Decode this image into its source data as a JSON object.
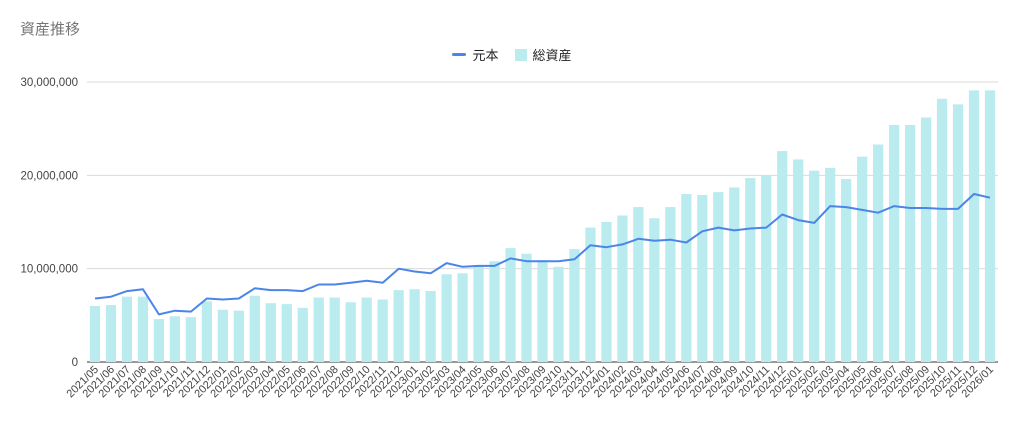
{
  "chart_data": {
    "type": "bar",
    "title": "資産推移",
    "legend_position": "top-center",
    "grid": true,
    "ylim": [
      0,
      30000000
    ],
    "yticks": [
      "0",
      "10,000,000",
      "20,000,000",
      "30,000,000"
    ],
    "ytick_values": [
      0,
      10000000,
      20000000,
      30000000
    ],
    "categories": [
      "2021/05",
      "2021/06",
      "2021/07",
      "2021/08",
      "2021/09",
      "2021/10",
      "2021/11",
      "2021/12",
      "2022/01",
      "2022/02",
      "2022/03",
      "2022/04",
      "2022/05",
      "2022/06",
      "2022/07",
      "2022/08",
      "2022/09",
      "2022/10",
      "2022/11",
      "2022/12",
      "2023/01",
      "2023/02",
      "2023/03",
      "2023/04",
      "2023/05",
      "2023/06",
      "2023/07",
      "2023/08",
      "2023/09",
      "2023/10",
      "2023/11",
      "2023/12",
      "2024/01",
      "2024/02",
      "2024/03",
      "2024/04",
      "2024/05",
      "2024/06",
      "2024/07",
      "2024/08",
      "2024/09",
      "2024/10",
      "2024/11",
      "2024/12",
      "2025/01",
      "2025/02",
      "2025/03",
      "2025/04",
      "2025/05",
      "2025/06",
      "2025/07",
      "2025/08",
      "2025/09",
      "2025/10",
      "2025/11",
      "2025/12",
      "2026/01"
    ],
    "series": [
      {
        "name": "元本",
        "kind": "line",
        "color": "#4a86e8",
        "values": [
          6800000,
          7000000,
          7600000,
          7800000,
          5100000,
          5500000,
          5400000,
          6800000,
          6700000,
          6800000,
          7900000,
          7700000,
          7700000,
          7600000,
          8300000,
          8300000,
          8500000,
          8700000,
          8500000,
          10000000,
          9700000,
          9500000,
          10600000,
          10200000,
          10300000,
          10300000,
          11100000,
          10800000,
          10800000,
          10800000,
          11000000,
          12500000,
          12300000,
          12600000,
          13200000,
          13000000,
          13100000,
          12800000,
          14000000,
          14400000,
          14100000,
          14300000,
          14400000,
          15800000,
          15200000,
          14900000,
          16700000,
          16600000,
          16300000,
          16000000,
          16700000,
          16500000,
          16500000,
          16400000,
          16400000,
          18000000,
          17600000
        ]
      },
      {
        "name": "総資産",
        "kind": "bar",
        "color": "#b9ebef",
        "values": [
          6000000,
          6100000,
          7000000,
          7000000,
          4600000,
          4900000,
          4800000,
          6500000,
          5600000,
          5500000,
          7100000,
          6300000,
          6200000,
          5800000,
          6900000,
          6900000,
          6400000,
          6900000,
          6700000,
          7700000,
          7800000,
          7600000,
          9400000,
          9500000,
          10300000,
          10800000,
          12200000,
          11600000,
          10900000,
          10200000,
          12100000,
          14400000,
          15000000,
          15700000,
          16600000,
          15400000,
          16600000,
          18000000,
          17900000,
          18200000,
          18700000,
          19700000,
          20000000,
          22600000,
          21700000,
          20500000,
          20800000,
          19600000,
          22000000,
          23300000,
          25400000,
          25400000,
          26200000,
          28200000,
          27600000,
          29100000,
          29100000
        ]
      }
    ]
  }
}
